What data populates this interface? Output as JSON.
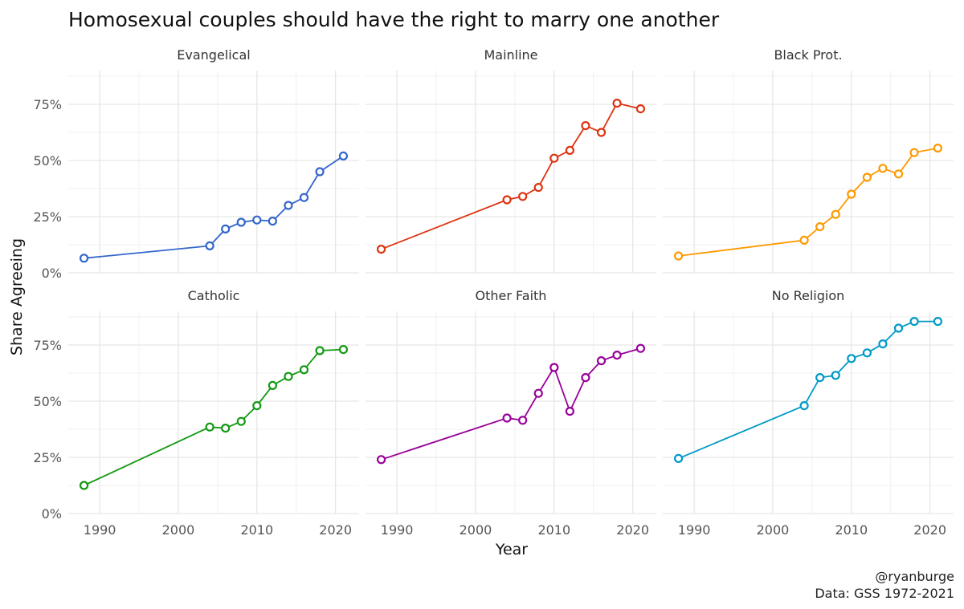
{
  "chart_data": {
    "type": "line",
    "title": "Homosexual couples should have the right to marry one another",
    "xlabel": "Year",
    "ylabel": "Share Agreeing",
    "xlim": [
      1986,
      2023
    ],
    "ylim": [
      0,
      0.9
    ],
    "x_ticks": [
      1990,
      2000,
      2010,
      2020
    ],
    "y_ticks": [
      0,
      0.25,
      0.5,
      0.75
    ],
    "y_tick_labels": [
      "0%",
      "25%",
      "50%",
      "75%"
    ],
    "grid": true,
    "x": [
      1988,
      2004,
      2006,
      2008,
      2010,
      2012,
      2014,
      2016,
      2018,
      2021
    ],
    "series": [
      {
        "name": "Evangelical",
        "color": "#3366CC",
        "values": [
          0.065,
          0.12,
          0.195,
          0.225,
          0.235,
          0.23,
          0.3,
          0.335,
          0.45,
          0.52
        ]
      },
      {
        "name": "Mainline",
        "color": "#DD3311",
        "values": [
          0.105,
          0.325,
          0.34,
          0.38,
          0.51,
          0.545,
          0.655,
          0.625,
          0.755,
          0.73
        ]
      },
      {
        "name": "Black Prot.",
        "color": "#FF9900",
        "values": [
          0.075,
          0.145,
          0.205,
          0.26,
          0.35,
          0.425,
          0.465,
          0.44,
          0.535,
          0.555
        ]
      },
      {
        "name": "Catholic",
        "color": "#119911",
        "values": [
          0.125,
          0.385,
          0.38,
          0.41,
          0.48,
          0.57,
          0.61,
          0.64,
          0.725,
          0.73
        ]
      },
      {
        "name": "Other Faith",
        "color": "#990099",
        "values": [
          0.24,
          0.425,
          0.415,
          0.535,
          0.65,
          0.455,
          0.605,
          0.68,
          0.705,
          0.735
        ]
      },
      {
        "name": "No Religion",
        "color": "#0099C6",
        "values": [
          0.245,
          0.48,
          0.605,
          0.615,
          0.69,
          0.715,
          0.755,
          0.825,
          0.855,
          0.855
        ]
      }
    ]
  },
  "caption": {
    "author": "@ryanburge",
    "source": "Data: GSS 1972-2021"
  }
}
